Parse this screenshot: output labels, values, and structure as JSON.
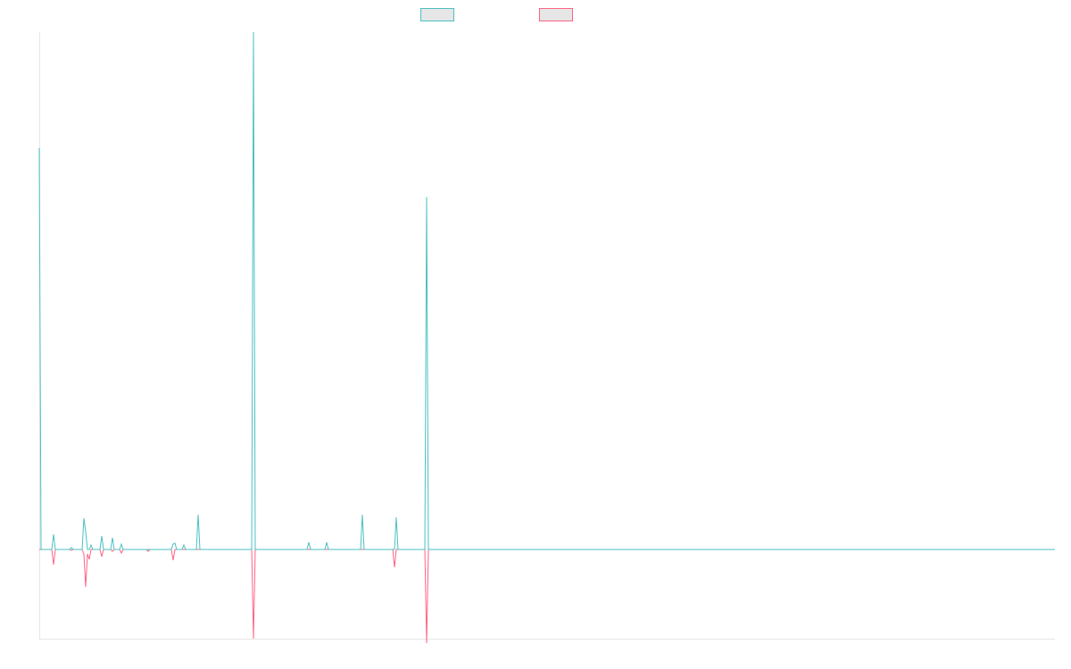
{
  "chart_data": {
    "type": "line",
    "title": "",
    "xlabel": "",
    "ylabel": "",
    "grid": false,
    "legend_position": "top-center",
    "ylim": [
      -1.0,
      5.8
    ],
    "x": [
      0,
      1,
      2,
      3,
      4,
      5,
      6,
      7,
      8,
      9,
      10,
      11,
      12,
      13,
      14,
      15,
      16,
      17,
      18,
      19,
      20,
      21,
      22,
      23,
      24,
      25,
      26,
      27,
      28,
      29,
      30,
      31,
      32,
      33,
      34,
      35,
      36,
      37,
      38,
      39,
      40,
      41,
      42,
      43,
      44,
      45,
      46,
      47,
      48,
      49,
      50,
      51,
      52,
      53,
      54,
      55,
      56,
      57,
      58,
      59,
      60,
      61,
      62,
      63,
      64,
      65,
      66,
      67,
      68,
      69,
      70,
      71,
      72,
      73,
      74,
      75,
      76,
      77,
      78,
      79,
      80,
      81,
      82,
      83,
      84,
      85,
      86,
      87,
      88,
      89,
      90,
      91,
      92,
      93,
      94,
      95,
      96,
      97,
      98,
      99,
      100,
      101,
      102,
      103,
      104,
      105,
      106,
      107,
      108,
      109,
      110,
      111,
      112,
      113,
      114,
      115,
      116,
      117,
      118,
      119,
      120,
      121,
      122,
      123,
      124,
      125,
      126,
      127,
      128,
      129,
      130,
      131,
      132,
      133,
      134,
      135,
      136,
      137,
      138,
      139,
      140,
      141,
      142,
      143,
      144,
      145,
      146,
      147,
      148,
      149,
      150,
      151,
      152,
      153,
      154,
      155,
      156,
      157,
      158,
      159,
      160,
      161,
      162,
      163,
      164,
      165,
      166,
      167,
      168,
      169,
      170,
      171,
      172,
      173,
      174,
      175,
      176,
      177,
      178,
      179,
      180,
      181,
      182,
      183,
      184,
      185,
      186,
      187,
      188,
      189,
      190,
      191,
      192,
      193,
      194,
      195,
      196,
      197,
      198,
      199,
      200,
      201,
      202,
      203,
      204,
      205,
      206,
      207,
      208,
      209,
      210,
      211,
      212,
      213,
      214,
      215,
      216,
      217,
      218,
      219,
      220,
      221,
      222,
      223,
      224,
      225,
      226,
      227,
      228,
      229,
      230,
      231,
      232,
      233,
      234,
      235,
      236,
      237,
      238,
      239,
      240,
      241,
      242,
      243,
      244,
      245,
      246,
      247,
      248,
      249,
      250,
      251,
      252,
      253,
      254,
      255,
      256,
      257,
      258,
      259,
      260,
      261,
      262,
      263,
      264,
      265,
      266,
      267,
      268,
      269,
      270,
      271,
      272,
      273,
      274,
      275,
      276,
      277,
      278,
      279,
      280,
      281,
      282,
      283,
      284,
      285,
      286,
      287,
      288,
      289,
      290,
      291,
      292,
      293,
      294,
      295,
      296,
      297,
      298,
      299,
      300,
      301,
      302,
      303,
      304,
      305,
      306,
      307,
      308,
      309,
      310,
      311,
      312,
      313,
      314,
      315,
      316,
      317,
      318,
      319,
      320,
      321,
      322,
      323,
      324,
      325,
      326,
      327,
      328,
      329,
      330,
      331,
      332,
      333,
      334,
      335,
      336,
      337,
      338,
      339,
      340,
      341,
      342,
      343,
      344,
      345,
      346,
      347,
      348,
      349,
      350,
      351,
      352,
      353,
      354,
      355,
      356,
      357,
      358,
      359,
      360,
      361,
      362,
      363,
      364,
      365,
      366,
      367,
      368,
      369,
      370,
      371,
      372,
      373,
      374,
      375,
      376,
      377,
      378,
      379,
      380,
      381,
      382,
      383,
      384,
      385,
      386,
      387,
      388,
      389,
      390,
      391,
      392,
      393,
      394,
      395,
      396,
      397,
      398,
      399,
      400,
      401,
      402,
      403,
      404,
      405,
      406,
      407,
      408,
      409,
      410,
      411,
      412,
      413,
      414,
      415,
      416,
      417,
      418,
      419,
      420,
      421,
      422,
      423,
      424,
      425,
      426,
      427,
      428,
      429,
      430,
      431,
      432,
      433,
      434,
      435,
      436,
      437,
      438,
      439,
      440,
      441,
      442,
      443,
      444,
      445,
      446,
      447,
      448,
      449,
      450,
      451,
      452,
      453,
      454,
      455,
      456,
      457,
      458,
      459,
      460,
      461,
      462,
      463,
      464,
      465,
      466,
      467,
      468,
      469,
      470,
      471,
      472,
      473,
      474,
      475,
      476,
      477,
      478,
      479,
      480,
      481,
      482,
      483,
      484,
      485,
      486,
      487,
      488,
      489,
      490,
      491,
      492,
      493,
      494,
      495,
      496,
      497,
      498,
      499,
      500,
      501,
      502,
      503,
      504,
      505,
      506,
      507,
      508,
      509,
      510,
      511,
      512,
      513,
      514,
      515,
      516,
      517,
      518,
      519,
      520,
      521,
      522,
      523,
      524,
      525,
      526,
      527,
      528,
      529,
      530,
      531,
      532,
      533,
      534,
      535,
      536,
      537,
      538,
      539,
      540,
      541,
      542,
      543,
      544,
      545,
      546,
      547,
      548,
      549,
      550,
      551,
      552,
      553,
      554,
      555,
      556,
      557,
      558,
      559,
      560,
      561,
      562,
      563,
      564,
      565,
      566,
      567,
      568,
      569
    ],
    "series": [
      {
        "name": "",
        "color": "#4bc0c0",
        "points": [
          [
            0,
            4.5
          ],
          [
            1,
            0
          ],
          [
            7,
            0
          ],
          [
            8,
            0.17
          ],
          [
            9,
            0
          ],
          [
            17,
            0
          ],
          [
            18,
            0.02
          ],
          [
            19,
            0
          ],
          [
            24,
            0
          ],
          [
            25,
            0.35
          ],
          [
            26,
            0.2
          ],
          [
            27,
            0
          ],
          [
            28,
            0
          ],
          [
            29,
            0.05
          ],
          [
            30,
            0
          ],
          [
            34,
            0
          ],
          [
            35,
            0.15
          ],
          [
            36,
            0
          ],
          [
            40,
            0
          ],
          [
            41,
            0.13
          ],
          [
            42,
            0
          ],
          [
            45,
            0
          ],
          [
            46,
            0.06
          ],
          [
            47,
            0
          ],
          [
            74,
            0
          ],
          [
            75,
            0.06
          ],
          [
            76,
            0.07
          ],
          [
            77,
            0
          ],
          [
            80,
            0
          ],
          [
            81,
            0.05
          ],
          [
            82,
            0
          ],
          [
            88,
            0
          ],
          [
            89,
            0.39
          ],
          [
            90,
            0
          ],
          [
            119,
            0
          ],
          [
            120,
            5.8
          ],
          [
            121,
            0
          ],
          [
            150,
            0
          ],
          [
            151,
            0.08
          ],
          [
            152,
            0
          ],
          [
            160,
            0
          ],
          [
            161,
            0.08
          ],
          [
            162,
            0
          ],
          [
            180,
            0
          ],
          [
            181,
            0.39
          ],
          [
            182,
            0
          ],
          [
            199,
            0
          ],
          [
            200,
            0.36
          ],
          [
            201,
            0
          ],
          [
            216,
            0
          ],
          [
            217,
            3.95
          ],
          [
            218,
            0
          ],
          [
            569,
            0
          ]
        ]
      },
      {
        "name": "",
        "color": "#ff6384",
        "points": [
          [
            0,
            0
          ],
          [
            7,
            0
          ],
          [
            8,
            -0.17
          ],
          [
            9,
            0
          ],
          [
            17,
            0
          ],
          [
            18,
            -0.01
          ],
          [
            19,
            0
          ],
          [
            24,
            0
          ],
          [
            25,
            -0.05
          ],
          [
            26,
            -0.42
          ],
          [
            27,
            -0.05
          ],
          [
            28,
            -0.11
          ],
          [
            29,
            0
          ],
          [
            34,
            0
          ],
          [
            35,
            -0.08
          ],
          [
            36,
            0
          ],
          [
            40,
            0
          ],
          [
            41,
            -0.02
          ],
          [
            42,
            0
          ],
          [
            45,
            0
          ],
          [
            46,
            -0.04
          ],
          [
            47,
            0
          ],
          [
            60,
            0
          ],
          [
            61,
            -0.02
          ],
          [
            62,
            0
          ],
          [
            74,
            0
          ],
          [
            75,
            -0.12
          ],
          [
            76,
            0
          ],
          [
            119,
            0
          ],
          [
            120,
            -1.0
          ],
          [
            121,
            0
          ],
          [
            198,
            0
          ],
          [
            199,
            -0.2
          ],
          [
            200,
            0
          ],
          [
            216,
            0
          ],
          [
            217,
            -1.05
          ],
          [
            218,
            0
          ],
          [
            569,
            0
          ]
        ]
      }
    ]
  }
}
